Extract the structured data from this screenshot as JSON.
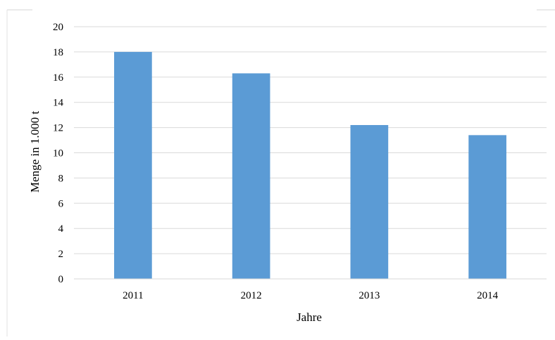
{
  "chart_data": {
    "type": "bar",
    "title": "",
    "xlabel": "Jahre",
    "ylabel": "Menge in 1.000 t",
    "categories": [
      "2011",
      "2012",
      "2013",
      "2014"
    ],
    "values": [
      18,
      16.3,
      12.2,
      11.4
    ],
    "ylim": [
      0,
      20
    ],
    "yticks": [
      "0",
      "2",
      "4",
      "6",
      "8",
      "10",
      "12",
      "14",
      "16",
      "18",
      "20"
    ],
    "grid": true,
    "legend": "none",
    "colors": {
      "bar": "#5b9bd5",
      "grid": "#d9d9d9",
      "frame": "#d0d0d0"
    }
  }
}
